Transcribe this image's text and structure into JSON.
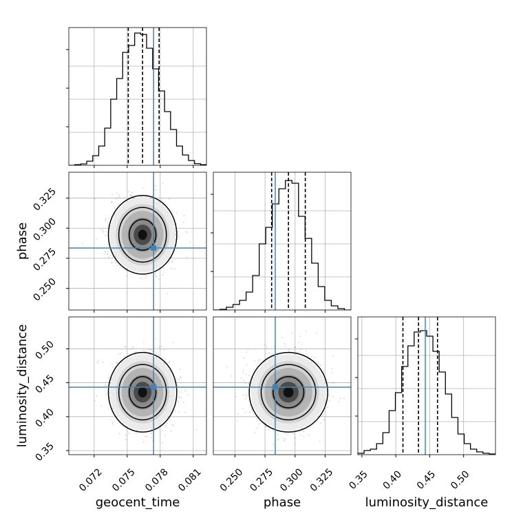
{
  "chart_data": {
    "type": "corner",
    "parameters": [
      "geocent_time",
      "phase",
      "luminosity_distance"
    ],
    "ranges": [
      [
        0.0697,
        0.0822
      ],
      [
        0.232,
        0.3465
      ],
      [
        0.344,
        0.547
      ]
    ],
    "truths": [
      0.0774,
      0.2835,
      0.4435
    ],
    "truth_color": "#4682b4",
    "grid": true,
    "quantiles": {
      "geocent_time": [
        0.0751,
        0.0764,
        0.0779
      ],
      "phase": [
        0.2805,
        0.2945,
        0.3085
      ],
      "luminosity_distance": [
        0.4105,
        0.4335,
        0.4615
      ]
    },
    "ticks": {
      "geocent_time": [
        "0.072",
        "0.075",
        "0.078",
        "0.081"
      ],
      "phase": [
        "0.250",
        "0.275",
        "0.300",
        "0.325"
      ],
      "luminosity_distance": [
        "0.35",
        "0.40",
        "0.45",
        "0.50"
      ]
    },
    "tick_values": {
      "geocent_time": [
        0.072,
        0.075,
        0.078,
        0.081
      ],
      "phase": [
        0.25,
        0.275,
        0.3,
        0.325
      ],
      "luminosity_distance": [
        0.35,
        0.4,
        0.45,
        0.5
      ]
    },
    "histograms": {
      "geocent_time": [
        0,
        0.005,
        0.01,
        0.03,
        0.07,
        0.14,
        0.27,
        0.48,
        0.63,
        0.82,
        0.87,
        0.96,
        0.95,
        0.85,
        0.7,
        0.54,
        0.39,
        0.26,
        0.14,
        0.075,
        0.035,
        0.012,
        0.005
      ],
      "phase": [
        0,
        0.005,
        0.02,
        0.04,
        0.07,
        0.13,
        0.25,
        0.48,
        0.6,
        0.77,
        0.88,
        0.94,
        0.92,
        0.68,
        0.52,
        0.34,
        0.17,
        0.07,
        0.03,
        0.01,
        0
      ],
      "luminosity_distance": [
        0.01,
        0.03,
        0.04,
        0.08,
        0.16,
        0.32,
        0.45,
        0.64,
        0.79,
        0.89,
        0.9,
        0.86,
        0.75,
        0.6,
        0.44,
        0.27,
        0.15,
        0.08,
        0.04,
        0.02,
        0.01,
        0.005
      ]
    },
    "joint": {
      "phase_vs_geocent_time": {
        "mean": [
          0.0764,
          0.2945
        ],
        "sd": [
          0.00135,
          0.0142
        ]
      },
      "luminosity_distance_vs_geocent_time": {
        "mean": [
          0.0764,
          0.436
        ],
        "sd": [
          0.00135,
          0.0255
        ]
      },
      "luminosity_distance_vs_phase": {
        "mean": [
          0.2945,
          0.436
        ],
        "sd": [
          0.0142,
          0.0255
        ]
      }
    }
  }
}
